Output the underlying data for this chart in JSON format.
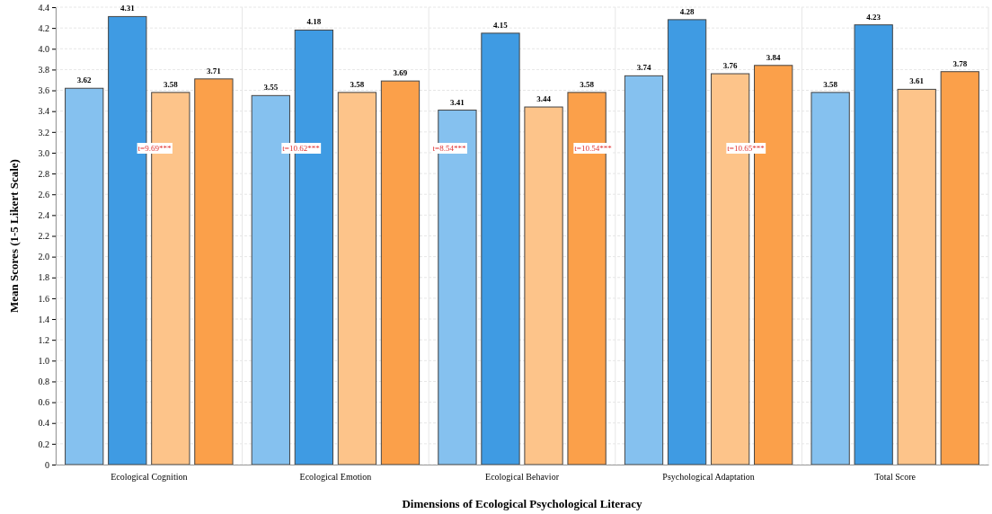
{
  "chart_data": {
    "type": "bar",
    "xlabel": "Dimensions of Ecological Psychological Literacy",
    "ylabel": "Mean Scores (1-5 Likert Scale)",
    "categories": [
      "Ecological Cognition",
      "Ecological Emotion",
      "Ecological Behavior",
      "Psychological Adaptation",
      "Total Score"
    ],
    "series": [
      {
        "color": "#85c1ef",
        "values": [
          3.62,
          3.55,
          3.41,
          3.74,
          3.58
        ]
      },
      {
        "color": "#3f9be3",
        "values": [
          4.31,
          4.18,
          4.15,
          4.28,
          4.23
        ]
      },
      {
        "color": "#fdc48a",
        "values": [
          3.58,
          3.58,
          3.44,
          3.76,
          3.61
        ]
      },
      {
        "color": "#fba04a",
        "values": [
          3.71,
          3.69,
          3.58,
          3.84,
          3.78
        ]
      }
    ],
    "ylim": [
      0,
      4.4
    ],
    "yticks": [
      0,
      0.2,
      0.4,
      0.6,
      0.8,
      {
        "value": 1,
        "label": "1.0"
      },
      1.2,
      1.4,
      1.6,
      1.8,
      {
        "value": 2,
        "label": "2.0"
      },
      2.2,
      2.4,
      2.6,
      2.8,
      {
        "value": 3,
        "label": "3.0"
      },
      3.2,
      3.4,
      3.6,
      3.8,
      {
        "value": 4,
        "label": "4.0"
      },
      4.2,
      4.4
    ],
    "grid": true,
    "data_labels": true,
    "annotations": [
      "t=9.69***",
      "t=10.62***",
      "t=8.54***",
      "t=10.54***",
      "t=10.65***"
    ]
  }
}
